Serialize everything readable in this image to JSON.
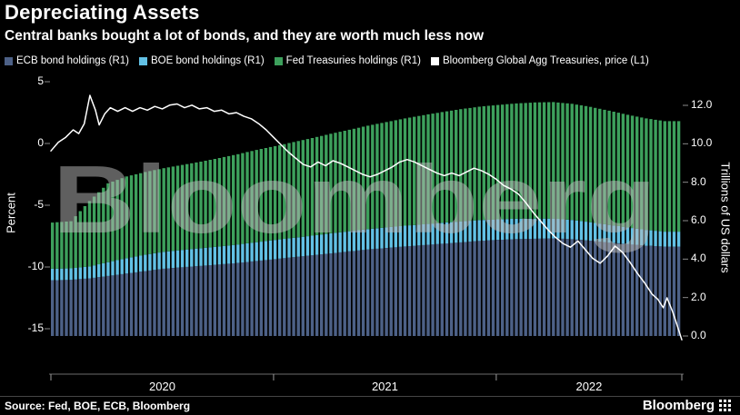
{
  "header": {
    "title": "Depreciating Assets",
    "subtitle": "Central banks bought a lot of bonds, and they are worth much less now"
  },
  "legend": [
    {
      "label": "ECB bond holdings (R1)",
      "color": "#4d6187"
    },
    {
      "label": "BOE bond holdings (R1)",
      "color": "#62c1e5"
    },
    {
      "label": "Fed Treasuries holdings (R1)",
      "color": "#3da05c"
    },
    {
      "label": "Bloomberg Global Agg Treasuries, price  (L1)",
      "color": "#ffffff"
    }
  ],
  "axes": {
    "left": {
      "label": "Percent",
      "ticks": [
        5,
        0,
        -5,
        -10,
        -15
      ]
    },
    "right": {
      "label": "Trillions of US dollars",
      "ticks": [
        "12.0",
        "10.0",
        "8.0",
        "6.0",
        "4.0",
        "2.0",
        "0.0"
      ]
    },
    "x": {
      "labels": [
        "2020",
        "2021",
        "2022"
      ]
    }
  },
  "watermark": "Bloomberg",
  "footer": {
    "source": "Source: Fed, BOE, ECB, Bloomberg",
    "logo": "Bloomberg"
  },
  "colors": {
    "background": "#000000",
    "text": "#ffffff",
    "line": "#ffffff"
  },
  "chart_data": {
    "type": "combo",
    "bar_type": "stacked",
    "title": "Depreciating Assets",
    "subtitle": "Central banks bought a lot of bonds, and they are worth much less now",
    "x_start": "2020-01",
    "x_end": "2022-10",
    "resolution": "monthly",
    "x_year_boundaries_month_index": [
      0,
      12,
      24,
      34
    ],
    "x_tick_labels": [
      "2020",
      "2021",
      "2022"
    ],
    "left_axis": {
      "label": "Percent",
      "range": [
        -16.5,
        5.5
      ],
      "ticks": [
        5,
        0,
        -5,
        -10,
        -15
      ]
    },
    "right_axis": {
      "label": "Trillions of US dollars",
      "range": [
        0,
        12.8
      ],
      "ticks": [
        12,
        10,
        8,
        6,
        4,
        2,
        0
      ]
    },
    "grid": false,
    "legend_position": "top",
    "series": [
      {
        "name": "ECB bond holdings",
        "axis": "R1",
        "type": "bar",
        "color": "#4d6187",
        "values": [
          2.9,
          2.92,
          3.0,
          3.12,
          3.25,
          3.38,
          3.5,
          3.58,
          3.65,
          3.72,
          3.8,
          3.9,
          4.0,
          4.1,
          4.2,
          4.3,
          4.4,
          4.5,
          4.58,
          4.66,
          4.73,
          4.8,
          4.87,
          4.95,
          5.0,
          5.04,
          5.06,
          5.08,
          5.04,
          4.96,
          4.86,
          4.78,
          4.7,
          4.65
        ]
      },
      {
        "name": "BOE bond holdings",
        "axis": "R1",
        "type": "bar",
        "color": "#62c1e5",
        "values": [
          0.6,
          0.6,
          0.62,
          0.72,
          0.8,
          0.85,
          0.88,
          0.9,
          0.92,
          0.94,
          0.96,
          0.98,
          1.0,
          1.01,
          1.02,
          1.04,
          1.05,
          1.06,
          1.07,
          1.08,
          1.08,
          1.09,
          1.09,
          1.08,
          1.07,
          1.06,
          1.05,
          1.03,
          1.0,
          0.96,
          0.92,
          0.87,
          0.82,
          0.78
        ]
      },
      {
        "name": "Fed Treasuries holdings",
        "axis": "R1",
        "type": "bar",
        "color": "#3da05c",
        "values": [
          2.4,
          2.45,
          3.4,
          4.1,
          4.25,
          4.3,
          4.35,
          4.42,
          4.5,
          4.6,
          4.7,
          4.8,
          4.88,
          4.98,
          5.08,
          5.18,
          5.28,
          5.38,
          5.48,
          5.58,
          5.68,
          5.76,
          5.84,
          5.9,
          5.95,
          6.0,
          6.04,
          6.06,
          6.04,
          6.0,
          5.94,
          5.86,
          5.8,
          5.75
        ]
      },
      {
        "name": "Bloomberg Global Agg Treasuries, price",
        "axis": "L1",
        "type": "line",
        "color": "#ffffff",
        "points": [
          [
            0,
            -0.6
          ],
          [
            0.4,
            0.1
          ],
          [
            0.8,
            0.5
          ],
          [
            1.2,
            1.1
          ],
          [
            1.5,
            0.8
          ],
          [
            1.8,
            1.6
          ],
          [
            2.1,
            3.9
          ],
          [
            2.4,
            2.7
          ],
          [
            2.6,
            1.5
          ],
          [
            2.9,
            2.4
          ],
          [
            3.2,
            2.9
          ],
          [
            3.6,
            2.6
          ],
          [
            4,
            2.9
          ],
          [
            4.4,
            2.6
          ],
          [
            4.8,
            2.9
          ],
          [
            5.2,
            2.7
          ],
          [
            5.6,
            3.0
          ],
          [
            6,
            2.8
          ],
          [
            6.4,
            3.1
          ],
          [
            6.8,
            3.2
          ],
          [
            7.2,
            2.9
          ],
          [
            7.6,
            3.1
          ],
          [
            8,
            2.8
          ],
          [
            8.4,
            2.9
          ],
          [
            8.8,
            2.6
          ],
          [
            9.2,
            2.7
          ],
          [
            9.6,
            2.4
          ],
          [
            10,
            2.5
          ],
          [
            10.4,
            2.2
          ],
          [
            10.8,
            2.0
          ],
          [
            11.2,
            1.6
          ],
          [
            11.6,
            1.1
          ],
          [
            12,
            0.5
          ],
          [
            12.4,
            -0.1
          ],
          [
            12.8,
            -0.7
          ],
          [
            13.2,
            -1.2
          ],
          [
            13.6,
            -1.7
          ],
          [
            14,
            -1.9
          ],
          [
            14.4,
            -1.5
          ],
          [
            14.8,
            -1.8
          ],
          [
            15.2,
            -1.4
          ],
          [
            15.6,
            -1.6
          ],
          [
            16,
            -1.9
          ],
          [
            16.4,
            -2.2
          ],
          [
            16.8,
            -2.5
          ],
          [
            17.2,
            -2.7
          ],
          [
            17.6,
            -2.5
          ],
          [
            18,
            -2.2
          ],
          [
            18.4,
            -1.9
          ],
          [
            18.8,
            -1.5
          ],
          [
            19.2,
            -1.3
          ],
          [
            19.6,
            -1.5
          ],
          [
            20,
            -1.8
          ],
          [
            20.4,
            -2.1
          ],
          [
            20.8,
            -2.4
          ],
          [
            21.2,
            -2.6
          ],
          [
            21.6,
            -2.4
          ],
          [
            22,
            -2.6
          ],
          [
            22.4,
            -2.3
          ],
          [
            22.8,
            -2.0
          ],
          [
            23.2,
            -2.2
          ],
          [
            23.6,
            -2.5
          ],
          [
            24,
            -2.9
          ],
          [
            24.4,
            -3.4
          ],
          [
            24.8,
            -3.7
          ],
          [
            25.2,
            -4.1
          ],
          [
            25.6,
            -4.8
          ],
          [
            26,
            -5.6
          ],
          [
            26.4,
            -6.3
          ],
          [
            26.8,
            -7.0
          ],
          [
            27.2,
            -7.6
          ],
          [
            27.6,
            -8.1
          ],
          [
            28,
            -8.4
          ],
          [
            28.4,
            -7.9
          ],
          [
            28.8,
            -8.6
          ],
          [
            29.2,
            -9.3
          ],
          [
            29.6,
            -9.7
          ],
          [
            30,
            -9.1
          ],
          [
            30.4,
            -8.3
          ],
          [
            30.8,
            -8.8
          ],
          [
            31.2,
            -9.6
          ],
          [
            31.6,
            -10.5
          ],
          [
            32,
            -11.3
          ],
          [
            32.4,
            -12.2
          ],
          [
            32.7,
            -12.6
          ],
          [
            33,
            -13.3
          ],
          [
            33.2,
            -12.5
          ],
          [
            33.5,
            -13.6
          ],
          [
            33.7,
            -14.5
          ],
          [
            34,
            -15.9
          ]
        ]
      }
    ]
  }
}
